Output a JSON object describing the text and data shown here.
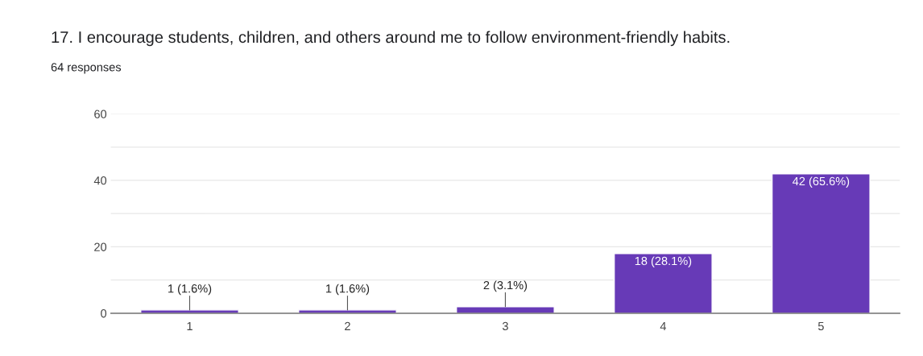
{
  "chart_data": {
    "type": "bar",
    "title": "17. I encourage students, children, and others around me to follow environment-friendly habits.",
    "subtitle": "64 responses",
    "categories": [
      "1",
      "2",
      "3",
      "4",
      "5"
    ],
    "values": [
      1,
      1,
      2,
      18,
      42
    ],
    "value_labels": [
      "1 (1.6%)",
      "1 (1.6%)",
      "2 (3.1%)",
      "18 (28.1%)",
      "42 (65.6%)"
    ],
    "color": "#673ab7",
    "ylim": [
      0,
      60
    ],
    "yticks": [
      0,
      {
        "value": 10,
        "label": null
      },
      20,
      {
        "value": 30,
        "label": null
      },
      40,
      {
        "value": 50,
        "label": null
      },
      60
    ],
    "grid": "y",
    "legend": false
  }
}
